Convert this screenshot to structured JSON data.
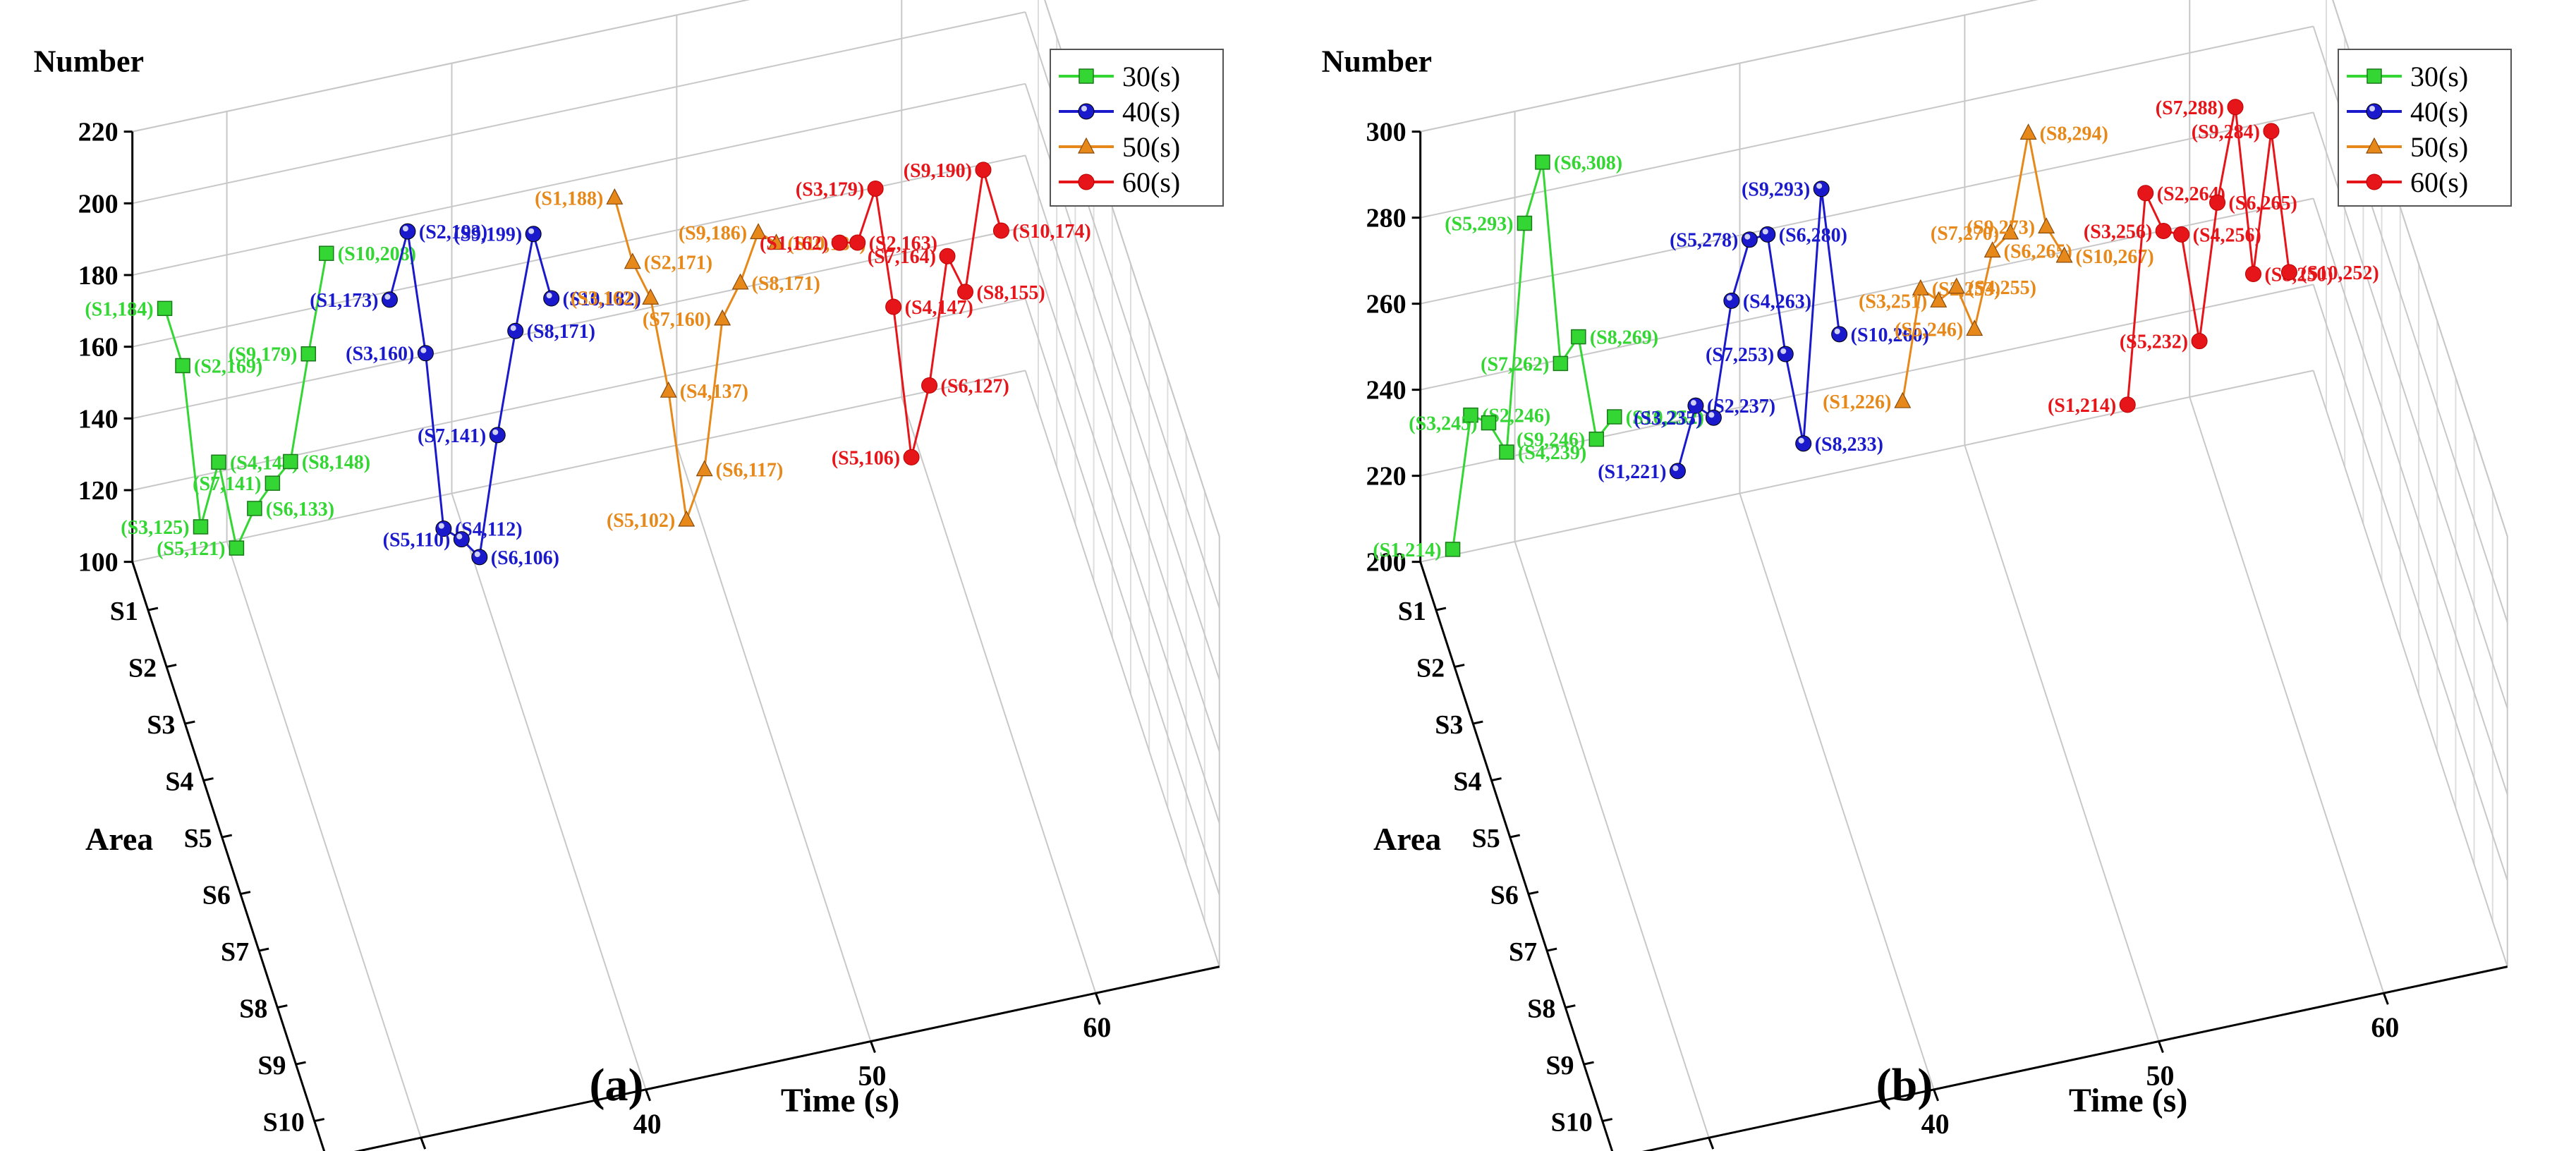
{
  "figure": {
    "captions": [
      "(a)",
      "(b)"
    ],
    "colors": {
      "30(s)": "#33d633",
      "40(s)": "#1a1acc",
      "50(s)": "#e6891a",
      "60(s)": "#e6151a"
    }
  },
  "chart_data": [
    {
      "type": "line",
      "panel": "a",
      "caption": "(a)",
      "zlabel": "Number",
      "xlabel": "Time (s)",
      "ylabel": "Area",
      "zlim": [
        100,
        220
      ],
      "z_ticks": [
        "100",
        "120",
        "140",
        "160",
        "180",
        "200",
        "220"
      ],
      "x_ticks": [
        "30",
        "40",
        "50",
        "60"
      ],
      "areas": [
        "S1",
        "S2",
        "S3",
        "S4",
        "S5",
        "S6",
        "S7",
        "S8",
        "S9",
        "S10"
      ],
      "legend": [
        "30(s)",
        "40(s)",
        "50(s)",
        "60(s)"
      ],
      "series": [
        {
          "name": "30(s)",
          "time": 30,
          "values": [
            184,
            169,
            125,
            144,
            121,
            133,
            141,
            148,
            179,
            208
          ],
          "labels": [
            "(S1,184)",
            "(S2,169)",
            "(S3,125)",
            "(S4,144)",
            "(S5,121)",
            "(S6,133)",
            "(S7,141)",
            "(S8,148)",
            "(S9,179)",
            "(S10,208)"
          ]
        },
        {
          "name": "40(s)",
          "time": 40,
          "values": [
            173,
            193,
            160,
            112,
            110,
            106,
            141,
            171,
            199,
            182
          ],
          "labels": [
            "(S1,173)",
            "(S2,193)",
            "(S3,160)",
            "(S4,112)",
            "(S5,110)",
            "(S6,106)",
            "(S7,141)",
            "(S8,171)",
            "(S9,199)",
            "(S10,182)"
          ]
        },
        {
          "name": "50(s)",
          "time": 50,
          "values": [
            188,
            171,
            162,
            137,
            102,
            117,
            160,
            171,
            186,
            184
          ],
          "labels": [
            "(S1,188)",
            "(S2,171)",
            "(S3,162)",
            "(S4,137)",
            "(S5,102)",
            "(S6,117)",
            "(S7,160)",
            "(S8,171)",
            "(S9,186)",
            "(S10,184)"
          ]
        },
        {
          "name": "60(s)",
          "time": 60,
          "values": [
            162,
            163,
            179,
            147,
            106,
            127,
            164,
            155,
            190,
            174
          ],
          "labels": [
            "(S1,162)",
            "(S2,163)",
            "(S3,179)",
            "(S4,147)",
            "(S5,106)",
            "(S6,127)",
            "(S7,164)",
            "(S8,155)",
            "(S9,190)",
            "(S10,174)"
          ]
        }
      ]
    },
    {
      "type": "line",
      "panel": "b",
      "caption": "(b)",
      "zlabel": "Number",
      "xlabel": "Time (s)",
      "ylabel": "Area",
      "zlim": [
        200,
        300
      ],
      "z_ticks": [
        "200",
        "220",
        "240",
        "260",
        "280",
        "300"
      ],
      "x_ticks": [
        "30",
        "40",
        "50",
        "60"
      ],
      "areas": [
        "S1",
        "S2",
        "S3",
        "S4",
        "S5",
        "S6",
        "S7",
        "S8",
        "S9",
        "S10"
      ],
      "legend": [
        "30(s)",
        "40(s)",
        "50(s)",
        "60(s)"
      ],
      "series": [
        {
          "name": "30(s)",
          "time": 30,
          "values": [
            214,
            246,
            245,
            239,
            293,
            308,
            262,
            269,
            246,
            252
          ],
          "labels": [
            "(S1,214)",
            "(S2,246)",
            "(S3,245)",
            "(S4,239)",
            "(S5,293)",
            "(S6,308)",
            "(S7,262)",
            "(S8,269)",
            "(S9,246)",
            "(S10,252)"
          ]
        },
        {
          "name": "40(s)",
          "time": 40,
          "values": [
            221,
            237,
            235,
            263,
            278,
            280,
            253,
            233,
            293,
            260
          ],
          "labels": [
            "(S1,221)",
            "(S2,237)",
            "(S3,235)",
            "(S4,263)",
            "(S5,278)",
            "(S6,280)",
            "(S7,253)",
            "(S8,233)",
            "(S9,293)",
            "(S10,260)"
          ]
        },
        {
          "name": "50(s)",
          "time": 50,
          "values": [
            226,
            253,
            251,
            255,
            246,
            265,
            270,
            294,
            273,
            267
          ],
          "labels": [
            "(S1,226)",
            "(S2,253)",
            "(S3,251)",
            "(S4,255)",
            "(S5,246)",
            "(S6,265)",
            "(S7,270)",
            "(S8,294)",
            "(S9,273)",
            "(S10,267)"
          ]
        },
        {
          "name": "60(s)",
          "time": 60,
          "values": [
            214,
            264,
            256,
            256,
            232,
            265,
            288,
            250,
            284,
            252
          ],
          "labels": [
            "(S1,214)",
            "(S2,264)",
            "(S3,256)",
            "(S4,256)",
            "(S5,232)",
            "(S6,265)",
            "(S7,288)",
            "(S8,250)",
            "(S9,284)",
            "(S10,252)"
          ]
        }
      ]
    }
  ]
}
